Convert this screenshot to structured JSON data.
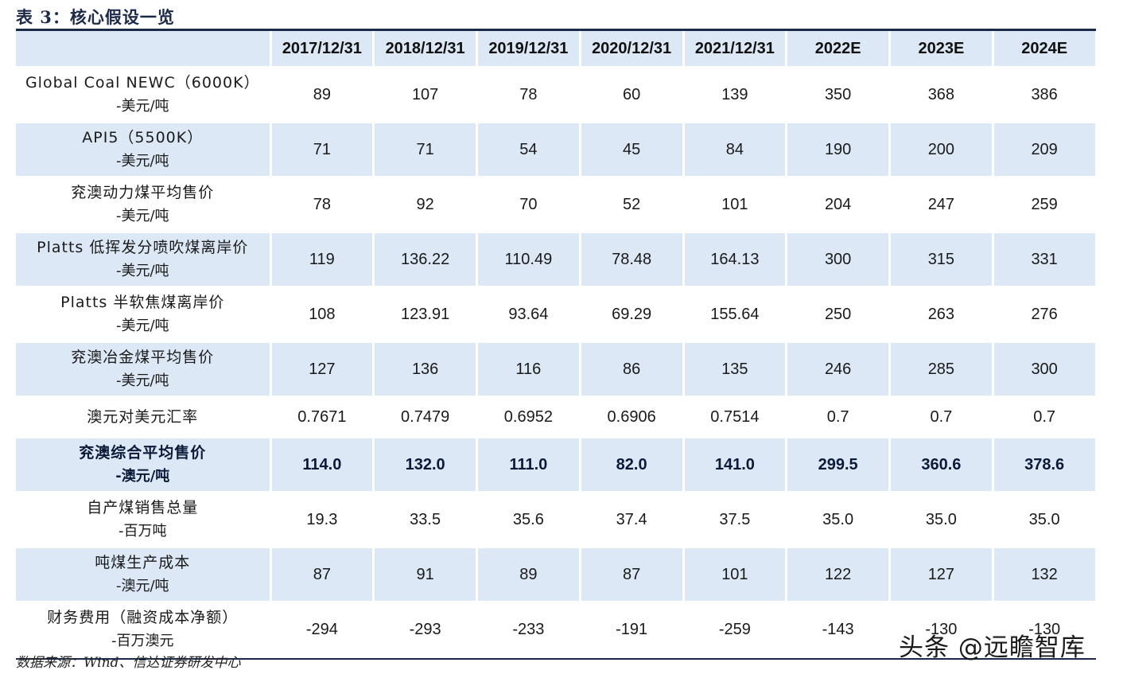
{
  "title": "表 3：核心假设一览",
  "header": [
    "",
    "2017/12/31",
    "2018/12/31",
    "2019/12/31",
    "2020/12/31",
    "2021/12/31",
    "2022E",
    "2023E",
    "2024E"
  ],
  "rows": [
    {
      "label1": "Global Coal NEWC（6000K）",
      "label2": "-美元/吨",
      "values": [
        "89",
        "107",
        "78",
        "60",
        "139",
        "350",
        "368",
        "386"
      ]
    },
    {
      "label1": "API5（5500K）",
      "label2": "-美元/吨",
      "values": [
        "71",
        "71",
        "54",
        "45",
        "84",
        "190",
        "200",
        "209"
      ]
    },
    {
      "label1": "兖澳动力煤平均售价",
      "label2": "-美元/吨",
      "values": [
        "78",
        "92",
        "70",
        "52",
        "101",
        "204",
        "247",
        "259"
      ]
    },
    {
      "label1": "Platts 低挥发分喷吹煤离岸价",
      "label2": "-美元/吨",
      "values": [
        "119",
        "136.22",
        "110.49",
        "78.48",
        "164.13",
        "300",
        "315",
        "331"
      ]
    },
    {
      "label1": "Platts 半软焦煤离岸价",
      "label2": "-美元/吨",
      "values": [
        "108",
        "123.91",
        "93.64",
        "69.29",
        "155.64",
        "250",
        "263",
        "276"
      ]
    },
    {
      "label1": "兖澳冶金煤平均售价",
      "label2": "-美元/吨",
      "values": [
        "127",
        "136",
        "116",
        "86",
        "135",
        "246",
        "285",
        "300"
      ]
    },
    {
      "label1": "澳元对美元汇率",
      "label2": "",
      "values": [
        "0.7671",
        "0.7479",
        "0.6952",
        "0.6906",
        "0.7514",
        "0.7",
        "0.7",
        "0.7"
      ]
    },
    {
      "label1": "兖澳综合平均售价",
      "label2": "-澳元/吨",
      "values": [
        "114.0",
        "132.0",
        "111.0",
        "82.0",
        "141.0",
        "299.5",
        "360.6",
        "378.6"
      ]
    },
    {
      "label1": "自产煤销售总量",
      "label2": "-百万吨",
      "values": [
        "19.3",
        "33.5",
        "35.6",
        "37.4",
        "37.5",
        "35.0",
        "35.0",
        "35.0"
      ]
    },
    {
      "label1": "吨煤生产成本",
      "label2": "-澳元/吨",
      "values": [
        "87",
        "91",
        "89",
        "87",
        "101",
        "122",
        "127",
        "132"
      ]
    },
    {
      "label1": "财务费用（融资成本净额）",
      "label2": "-百万澳元",
      "values": [
        "-294",
        "-293",
        "-233",
        "-191",
        "-259",
        "-143",
        "-130",
        "-130"
      ]
    }
  ],
  "source": "数据来源：Wind、信达证券研发中心",
  "watermark": "头条 @远瞻智库"
}
